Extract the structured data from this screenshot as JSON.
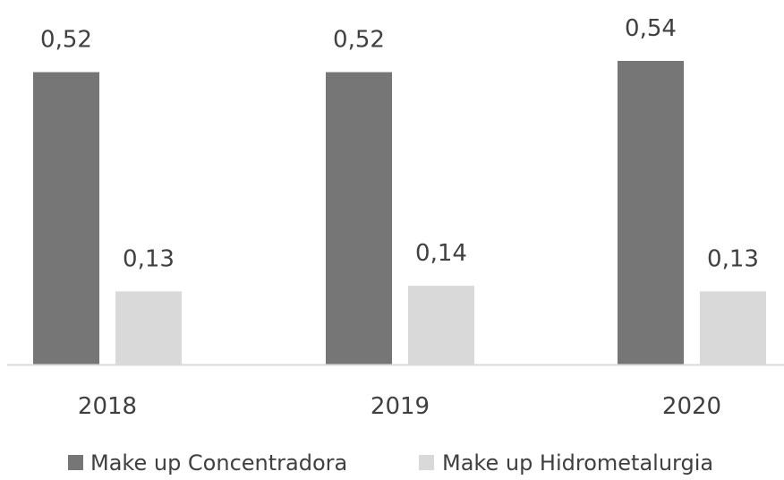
{
  "chart_data": {
    "type": "bar",
    "categories": [
      "2018",
      "2019",
      "2020"
    ],
    "series": [
      {
        "name": "Make up Concentradora",
        "values": [
          0.52,
          0.52,
          0.54
        ],
        "labels": [
          "0,52",
          "0,52",
          "0,54"
        ],
        "color": "#767676"
      },
      {
        "name": "Make up Hidrometalurgia",
        "values": [
          0.13,
          0.14,
          0.13
        ],
        "labels": [
          "0,13",
          "0,14",
          "0,13"
        ],
        "color": "#d9d9d9"
      }
    ],
    "ylim": [
      0,
      0.54
    ],
    "grid": false,
    "legend": "bottom"
  },
  "colors": {
    "axis": "#d9d9d9",
    "text": "#404040"
  }
}
